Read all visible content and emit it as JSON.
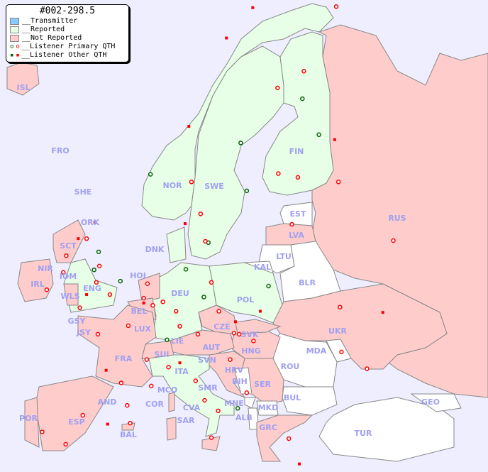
{
  "legend": {
    "title": "#002-298.5",
    "items": [
      {
        "label": "__Transmitter",
        "color": "#88ccff"
      },
      {
        "label": "__Reported",
        "color": "#e6ffe6"
      },
      {
        "label": "__Not Reported",
        "color": "#ffcccc"
      },
      {
        "label": "__Listener Primary QTH",
        "marker": "circle"
      },
      {
        "label": "__Listener Other QTH",
        "marker": "square"
      }
    ]
  },
  "colors": {
    "sea": "#eeeeff",
    "reported": "#e6ffe6",
    "not_reported": "#ffcccc",
    "no_data": "#ffffff",
    "marker_red": "#ff0000",
    "marker_green": "#006600"
  },
  "countries": {
    "ISL": "not_reported",
    "FRO": "",
    "SHE": "",
    "ORK": "",
    "NOR": "reported",
    "SWE": "reported",
    "FIN": "reported",
    "EST": "none",
    "LVA": "not_reported",
    "LTU": "none",
    "KAL": "none",
    "BLR": "none",
    "RUS": "not_reported",
    "UKR": "not_reported",
    "MDA": "none",
    "ROU": "none",
    "BUL": "none",
    "TUR": "none",
    "GEO": "none",
    "GRC": "not_reported",
    "MKD": "none",
    "ALB": "none",
    "MNE": "none",
    "SRB": "not_reported",
    "BIH": "none",
    "HRV": "not_reported",
    "SVN": "not_reported",
    "HNG": "not_reported",
    "SVK": "not_reported",
    "CZE": "not_reported",
    "AUT": "not_reported",
    "POL": "reported",
    "DNK": "reported",
    "HOL": "not_reported",
    "BEL": "not_reported",
    "LUX": "not_reported",
    "DEU": "reported",
    "LIE": "not_reported",
    "SUI": "not_reported",
    "ITA": "reported",
    "MCO": "not_reported",
    "COR": "not_reported",
    "SAR": "not_reported",
    "CVA": "reported",
    "SMR": "reported",
    "FRA": "not_reported",
    "GSY": "not_reported",
    "JSY": "not_reported",
    "AND": "not_reported",
    "POR": "not_reported",
    "ESP": "not_reported",
    "BAL": "not_reported",
    "IRL": "not_reported",
    "NIR": "not_reported",
    "SCT": "not_reported",
    "IOM": "not_reported",
    "WLS": "not_reported",
    "ENG": "reported"
  },
  "labels": [
    "ISL",
    "FRO",
    "SHE",
    "ORK",
    "NOR",
    "SWE",
    "FIN",
    "EST",
    "LVA",
    "LTU",
    "KAL",
    "BLR",
    "RUS",
    "UKR",
    "MDA",
    "ROU",
    "BUL",
    "TUR",
    "GEO",
    "GRC",
    "MKD",
    "ALB",
    "MNE",
    "SER",
    "BIH",
    "HRV",
    "SVN",
    "HNG",
    "SVK",
    "CZE",
    "AUT",
    "POL",
    "DNK",
    "HOL",
    "BEL",
    "LUX",
    "DEU",
    "LIE",
    "SUI",
    "ITA",
    "MCO",
    "COR",
    "SAR",
    "CVA",
    "SMR",
    "FRA",
    "GSY",
    "JSY",
    "AND",
    "POR",
    "ESP",
    "BAL",
    "IRL",
    "NIR",
    "SCT",
    "IOM",
    "WLS",
    "ENG"
  ],
  "markers": [
    {
      "lon": -21.9,
      "lat": 64.1,
      "t": "p",
      "g": false
    },
    {
      "lon": -3.2,
      "lat": 55.9,
      "t": "p",
      "g": false
    },
    {
      "lon": -4.3,
      "lat": 55.9,
      "t": "s",
      "g": false
    },
    {
      "lon": -2.1,
      "lat": 57.1,
      "t": "s",
      "g": false
    },
    {
      "lon": -6.3,
      "lat": 53.3,
      "t": "p",
      "g": false
    },
    {
      "lon": -5.9,
      "lat": 54.6,
      "t": "p",
      "g": false
    },
    {
      "lon": -8.5,
      "lat": 51.9,
      "t": "p",
      "g": false
    },
    {
      "lon": -1.6,
      "lat": 54.9,
      "t": "p",
      "g": true
    },
    {
      "lon": -2.2,
      "lat": 53.5,
      "t": "p",
      "g": true
    },
    {
      "lon": -1.5,
      "lat": 53.8,
      "t": "p",
      "g": false
    },
    {
      "lon": -1.9,
      "lat": 52.5,
      "t": "p",
      "g": false
    },
    {
      "lon": -0.1,
      "lat": 51.5,
      "t": "p",
      "g": false
    },
    {
      "lon": 1.3,
      "lat": 52.6,
      "t": "p",
      "g": true
    },
    {
      "lon": -3.2,
      "lat": 51.5,
      "t": "s",
      "g": false
    },
    {
      "lon": -4.1,
      "lat": 50.4,
      "t": "p",
      "g": false
    },
    {
      "lon": 4.9,
      "lat": 52.4,
      "t": "p",
      "g": false
    },
    {
      "lon": 4.4,
      "lat": 51.2,
      "t": "p",
      "g": false
    },
    {
      "lon": 4.4,
      "lat": 50.8,
      "t": "s",
      "g": false
    },
    {
      "lon": 5.6,
      "lat": 50.6,
      "t": "p",
      "g": false
    },
    {
      "lon": 2.35,
      "lat": 48.85,
      "t": "p",
      "g": false
    },
    {
      "lon": -1.7,
      "lat": 48.1,
      "t": "p",
      "g": false
    },
    {
      "lon": 4.8,
      "lat": 45.8,
      "t": "p",
      "g": false
    },
    {
      "lon": 5.4,
      "lat": 43.3,
      "t": "p",
      "g": false
    },
    {
      "lon": -0.6,
      "lat": 44.8,
      "t": "s",
      "g": false
    },
    {
      "lon": 1.4,
      "lat": 43.6,
      "t": "p",
      "g": false
    },
    {
      "lon": -3.7,
      "lat": 40.4,
      "t": "p",
      "g": false
    },
    {
      "lon": 2.2,
      "lat": 41.4,
      "t": "p",
      "g": false
    },
    {
      "lon": -9.1,
      "lat": 38.7,
      "t": "p",
      "g": false
    },
    {
      "lon": -5.98,
      "lat": 37.4,
      "t": "p",
      "g": false
    },
    {
      "lon": -0.4,
      "lat": 39.5,
      "t": "s",
      "g": false
    },
    {
      "lon": 2.6,
      "lat": 39.6,
      "t": "p",
      "g": false
    },
    {
      "lon": 8.7,
      "lat": 50.1,
      "t": "p",
      "g": false
    },
    {
      "lon": 13.4,
      "lat": 52.5,
      "t": "p",
      "g": false
    },
    {
      "lon": 10.0,
      "lat": 53.55,
      "t": "p",
      "g": true
    },
    {
      "lon": 11.6,
      "lat": 48.1,
      "t": "p",
      "g": false
    },
    {
      "lon": 9.2,
      "lat": 48.8,
      "t": "p",
      "g": false
    },
    {
      "lon": 6.95,
      "lat": 50.9,
      "t": "p",
      "g": false
    },
    {
      "lon": 12.4,
      "lat": 51.3,
      "t": "p",
      "g": true
    },
    {
      "lon": 7.5,
      "lat": 47.6,
      "t": "p",
      "g": true
    },
    {
      "lon": 14.4,
      "lat": 50.1,
      "t": "p",
      "g": false
    },
    {
      "lon": 16.6,
      "lat": 49.2,
      "t": "s",
      "g": false
    },
    {
      "lon": 16.4,
      "lat": 48.2,
      "t": "p",
      "g": false
    },
    {
      "lon": 19.0,
      "lat": 47.5,
      "t": "p",
      "g": false
    },
    {
      "lon": 17.1,
      "lat": 48.1,
      "t": "p",
      "g": false
    },
    {
      "lon": 21.0,
      "lat": 52.2,
      "t": "p",
      "g": true
    },
    {
      "lon": 19.9,
      "lat": 50.1,
      "t": "s",
      "g": false
    },
    {
      "lon": 9.2,
      "lat": 45.5,
      "t": "s",
      "g": false
    },
    {
      "lon": 7.7,
      "lat": 45.1,
      "t": "p",
      "g": false
    },
    {
      "lon": 11.3,
      "lat": 43.8,
      "t": "p",
      "g": false
    },
    {
      "lon": 12.5,
      "lat": 41.9,
      "t": "p",
      "g": false
    },
    {
      "lon": 14.3,
      "lat": 40.85,
      "t": "p",
      "g": false
    },
    {
      "lon": 16.9,
      "lat": 41.1,
      "t": "p",
      "g": true
    },
    {
      "lon": 13.4,
      "lat": 38.1,
      "t": "p",
      "g": false
    },
    {
      "lon": 15.9,
      "lat": 45.8,
      "t": "p",
      "g": false
    },
    {
      "lon": 18.1,
      "lat": 42.65,
      "t": "p",
      "g": false
    },
    {
      "lon": 23.7,
      "lat": 38.0,
      "t": "p",
      "g": false
    },
    {
      "lon": 25.1,
      "lat": 35.3,
      "t": "s",
      "g": false
    },
    {
      "lon": 24.1,
      "lat": 56.95,
      "t": "p",
      "g": false
    },
    {
      "lon": 30.3,
      "lat": 59.9,
      "t": "p",
      "g": false
    },
    {
      "lon": 37.6,
      "lat": 55.75,
      "t": "p",
      "g": false
    },
    {
      "lon": 30.5,
      "lat": 50.45,
      "t": "p",
      "g": false
    },
    {
      "lon": 36.2,
      "lat": 50.0,
      "t": "s",
      "g": false
    },
    {
      "lon": 30.7,
      "lat": 46.5,
      "t": "p",
      "g": false
    },
    {
      "lon": 34.1,
      "lat": 44.95,
      "t": "p",
      "g": false
    },
    {
      "lon": 10.75,
      "lat": 59.9,
      "t": "p",
      "g": false
    },
    {
      "lon": 5.3,
      "lat": 60.4,
      "t": "p",
      "g": true
    },
    {
      "lon": 10.4,
      "lat": 63.4,
      "t": "s",
      "g": false
    },
    {
      "lon": 18.1,
      "lat": 59.3,
      "t": "p",
      "g": true
    },
    {
      "lon": 11.97,
      "lat": 57.7,
      "t": "p",
      "g": false
    },
    {
      "lon": 13.0,
      "lat": 55.6,
      "t": "p",
      "g": true
    },
    {
      "lon": 17.3,
      "lat": 62.4,
      "t": "p",
      "g": true
    },
    {
      "lon": 22.2,
      "lat": 65.6,
      "t": "p",
      "g": false
    },
    {
      "lon": 12.6,
      "lat": 55.7,
      "t": "p",
      "g": false
    },
    {
      "lon": 9.9,
      "lat": 57.0,
      "t": "s",
      "g": false
    },
    {
      "lon": 24.9,
      "lat": 60.2,
      "t": "p",
      "g": false
    },
    {
      "lon": 25.5,
      "lat": 65.0,
      "t": "p",
      "g": true
    },
    {
      "lon": 27.7,
      "lat": 62.9,
      "t": "p",
      "g": true
    },
    {
      "lon": 22.3,
      "lat": 60.45,
      "t": "p",
      "g": false
    },
    {
      "lon": 29.8,
      "lat": 62.6,
      "t": "s",
      "g": false
    },
    {
      "lon": 25.7,
      "lat": 66.5,
      "t": "p",
      "g": false
    },
    {
      "lon": 18.9,
      "lat": 69.65,
      "t": "s",
      "g": false
    },
    {
      "lon": 30.0,
      "lat": 69.7,
      "t": "p",
      "g": false
    },
    {
      "lon": 15.4,
      "lat": 68.2,
      "t": "s",
      "g": false
    }
  ]
}
